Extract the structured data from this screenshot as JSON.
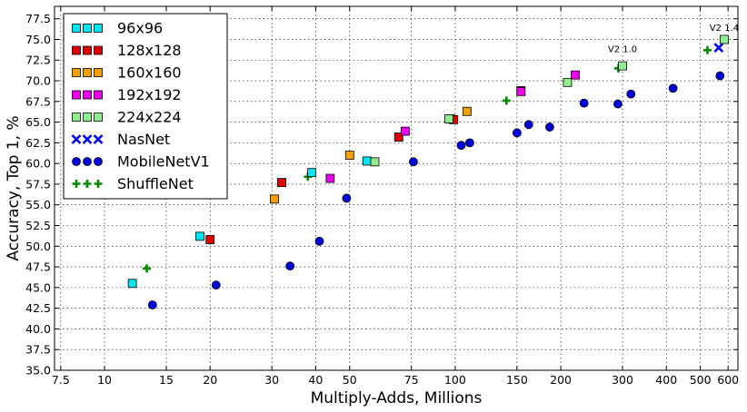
{
  "chart_data": {
    "type": "scatter",
    "xlabel": "Multiply-Adds, Millions",
    "ylabel": "Accuracy, Top 1, %",
    "xscale": "log",
    "xlim": [
      7.2,
      640
    ],
    "ylim": [
      35.0,
      79.0
    ],
    "grid": true,
    "legend_position": "top-left",
    "x_ticks": [
      {
        "value": 7.5,
        "label": "7.5"
      },
      {
        "value": 10,
        "label": "10"
      },
      {
        "value": 15,
        "label": "15"
      },
      {
        "value": 20,
        "label": "20"
      },
      {
        "value": 30,
        "label": "30"
      },
      {
        "value": 40,
        "label": "40"
      },
      {
        "value": 50,
        "label": "50"
      },
      {
        "value": 75,
        "label": "75"
      },
      {
        "value": 100,
        "label": "100"
      },
      {
        "value": 150,
        "label": "150"
      },
      {
        "value": 200,
        "label": "200"
      },
      {
        "value": 300,
        "label": "300"
      },
      {
        "value": 400,
        "label": "400"
      },
      {
        "value": 500,
        "label": "500"
      },
      {
        "value": 600,
        "label": "600"
      }
    ],
    "y_ticks": [
      "35.0",
      "37.5",
      "40.0",
      "42.5",
      "45.0",
      "47.5",
      "50.0",
      "52.5",
      "55.0",
      "57.5",
      "60.0",
      "62.5",
      "65.0",
      "67.5",
      "70.0",
      "72.5",
      "75.0",
      "77.5"
    ],
    "series": [
      {
        "name": "96x96",
        "marker": "square",
        "color": "#00e5ee",
        "points": [
          [
            12.0,
            45.5
          ],
          [
            18.7,
            51.2
          ],
          [
            39.0,
            58.9
          ],
          [
            56.0,
            60.3
          ],
          [
            97.0,
            65.4
          ]
        ]
      },
      {
        "name": "128x128",
        "marker": "square",
        "color": "#e00000",
        "points": [
          [
            20.0,
            50.8
          ],
          [
            32.0,
            57.7
          ],
          [
            69.0,
            63.2
          ],
          [
            99.0,
            65.3
          ],
          [
            154.0,
            68.8
          ]
        ]
      },
      {
        "name": "160x160",
        "marker": "square",
        "color": "#f5a000",
        "points": [
          [
            30.5,
            55.7
          ],
          [
            50.0,
            61.0
          ],
          [
            108.0,
            66.3
          ]
        ]
      },
      {
        "name": "192x192",
        "marker": "square",
        "color": "#ee00ee",
        "points": [
          [
            44.0,
            58.2
          ],
          [
            72.0,
            63.9
          ],
          [
            154.0,
            68.7
          ],
          [
            220.0,
            70.7
          ]
        ]
      },
      {
        "name": "224x224",
        "marker": "square",
        "color": "#90ee90",
        "points": [
          [
            59.0,
            60.2
          ],
          [
            96.0,
            65.4
          ],
          [
            209.0,
            69.8
          ],
          [
            300.0,
            71.8
          ],
          [
            585.0,
            75.0
          ]
        ]
      },
      {
        "name": "NasNet",
        "marker": "x",
        "color": "#0000ff",
        "points": [
          [
            564.0,
            74.0
          ]
        ]
      },
      {
        "name": "MobileNetV1",
        "marker": "circle",
        "color": "#0000dd",
        "points": [
          [
            13.7,
            42.9
          ],
          [
            20.8,
            45.3
          ],
          [
            33.8,
            47.6
          ],
          [
            41.0,
            50.6
          ],
          [
            49.0,
            55.8
          ],
          [
            76.0,
            60.2
          ],
          [
            104.0,
            62.2
          ],
          [
            110.0,
            62.5
          ],
          [
            150.0,
            63.7
          ],
          [
            162.0,
            64.7
          ],
          [
            186.0,
            64.4
          ],
          [
            233.0,
            67.3
          ],
          [
            291.0,
            67.2
          ],
          [
            317.0,
            68.4
          ],
          [
            418.0,
            69.1
          ],
          [
            569.0,
            70.6
          ]
        ]
      },
      {
        "name": "ShuffleNet",
        "marker": "plus",
        "color": "#008800",
        "points": [
          [
            13.2,
            47.3
          ],
          [
            38.0,
            58.4
          ],
          [
            140.0,
            67.6
          ],
          [
            292.0,
            71.5
          ],
          [
            524.0,
            73.7
          ]
        ]
      }
    ],
    "annotations": [
      {
        "text": "V2 1.0",
        "x": 300.0,
        "y": 73.0
      },
      {
        "text": "V2 1.4",
        "x": 585.0,
        "y": 75.6
      }
    ]
  }
}
